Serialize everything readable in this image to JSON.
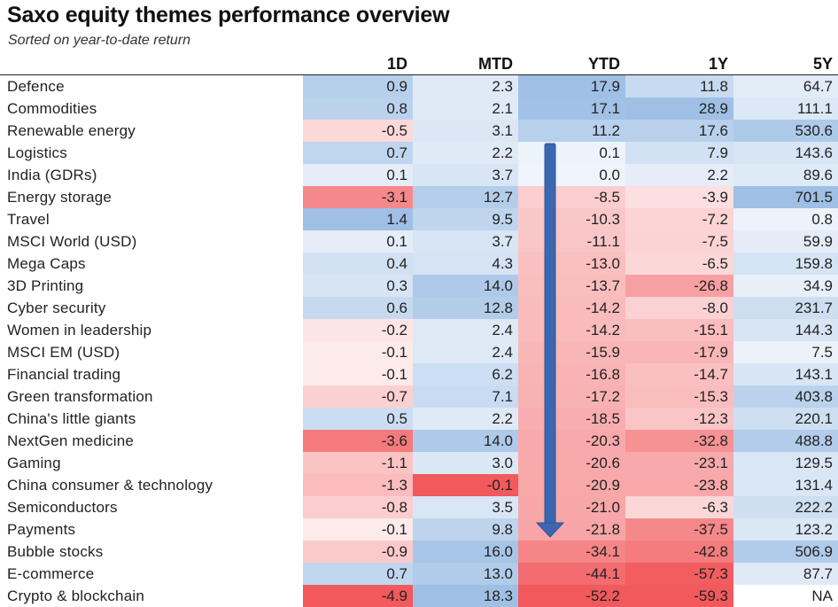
{
  "header": {
    "title": "Saxo equity themes performance overview",
    "subtitle": "Sorted on year-to-date return"
  },
  "chart_data": {
    "type": "table",
    "columns": [
      "1D",
      "MTD",
      "YTD",
      "1Y",
      "5Y"
    ],
    "rows": [
      {
        "name": "Defence",
        "values": [
          "0.9",
          "2.3",
          "17.9",
          "11.8",
          "64.7"
        ]
      },
      {
        "name": "Commodities",
        "values": [
          "0.8",
          "2.1",
          "17.1",
          "28.9",
          "111.1"
        ]
      },
      {
        "name": "Renewable energy",
        "values": [
          "-0.5",
          "3.1",
          "11.2",
          "17.6",
          "530.6"
        ]
      },
      {
        "name": "Logistics",
        "values": [
          "0.7",
          "2.2",
          "0.1",
          "7.9",
          "143.6"
        ]
      },
      {
        "name": "India (GDRs)",
        "values": [
          "0.1",
          "3.7",
          "0.0",
          "2.2",
          "89.6"
        ]
      },
      {
        "name": "Energy storage",
        "values": [
          "-3.1",
          "12.7",
          "-8.5",
          "-3.9",
          "701.5"
        ]
      },
      {
        "name": "Travel",
        "values": [
          "1.4",
          "9.5",
          "-10.3",
          "-7.2",
          "0.8"
        ]
      },
      {
        "name": "MSCI World (USD)",
        "values": [
          "0.1",
          "3.7",
          "-11.1",
          "-7.5",
          "59.9"
        ]
      },
      {
        "name": "Mega Caps",
        "values": [
          "0.4",
          "4.3",
          "-13.0",
          "-6.5",
          "159.8"
        ]
      },
      {
        "name": "3D Printing",
        "values": [
          "0.3",
          "14.0",
          "-13.7",
          "-26.8",
          "34.9"
        ]
      },
      {
        "name": "Cyber security",
        "values": [
          "0.6",
          "12.8",
          "-14.2",
          "-8.0",
          "231.7"
        ]
      },
      {
        "name": "Women in leadership",
        "values": [
          "-0.2",
          "2.4",
          "-14.2",
          "-15.1",
          "144.3"
        ]
      },
      {
        "name": "MSCI EM (USD)",
        "values": [
          "-0.1",
          "2.4",
          "-15.9",
          "-17.9",
          "7.5"
        ]
      },
      {
        "name": "Financial trading",
        "values": [
          "-0.1",
          "6.2",
          "-16.8",
          "-14.7",
          "143.1"
        ]
      },
      {
        "name": "Green transformation",
        "values": [
          "-0.7",
          "7.1",
          "-17.2",
          "-15.3",
          "403.8"
        ]
      },
      {
        "name": "China's little giants",
        "values": [
          "0.5",
          "2.2",
          "-18.5",
          "-12.3",
          "220.1"
        ]
      },
      {
        "name": "NextGen medicine",
        "values": [
          "-3.6",
          "14.0",
          "-20.3",
          "-32.8",
          "488.8"
        ]
      },
      {
        "name": "Gaming",
        "values": [
          "-1.1",
          "3.0",
          "-20.6",
          "-23.1",
          "129.5"
        ]
      },
      {
        "name": "China consumer & technology",
        "values": [
          "-1.3",
          "-0.1",
          "-20.9",
          "-23.8",
          "131.4"
        ]
      },
      {
        "name": "Semiconductors",
        "values": [
          "-0.8",
          "3.5",
          "-21.0",
          "-6.3",
          "222.2"
        ]
      },
      {
        "name": "Payments",
        "values": [
          "-0.1",
          "9.8",
          "-21.8",
          "-37.5",
          "123.2"
        ]
      },
      {
        "name": "Bubble stocks",
        "values": [
          "-0.9",
          "16.0",
          "-34.1",
          "-42.8",
          "506.9"
        ]
      },
      {
        "name": "E-commerce",
        "values": [
          "0.7",
          "13.0",
          "-44.1",
          "-57.3",
          "87.7"
        ]
      },
      {
        "name": "Crypto & blockchain",
        "values": [
          "-4.9",
          "18.3",
          "-52.2",
          "-59.3",
          "NA"
        ]
      }
    ],
    "colors": {
      "positive": "#6fa0d8",
      "negative": "#f0474a",
      "neutral": "#ffffff",
      "arrow": "#3a67b0"
    }
  }
}
